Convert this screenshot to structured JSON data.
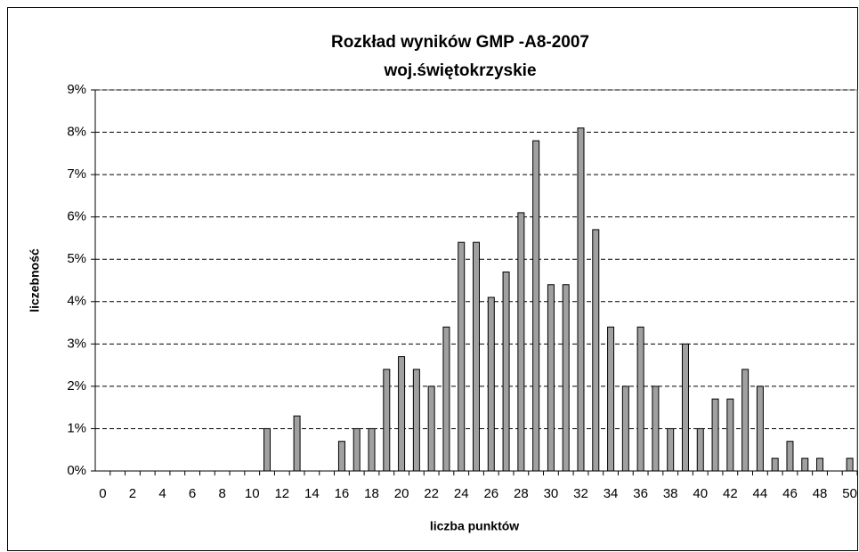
{
  "chart_data": {
    "type": "bar",
    "title": "Rozkład wyników GMP -A8-2007",
    "subtitle": "woj.świętokrzyskie",
    "x_label": "liczba punktów",
    "y_label": "liczebność",
    "categories": [
      0,
      null,
      2,
      null,
      4,
      null,
      6,
      null,
      8,
      null,
      10,
      null,
      12,
      null,
      14,
      null,
      16,
      null,
      18,
      null,
      20,
      null,
      22,
      null,
      24,
      null,
      26,
      null,
      28,
      null,
      30,
      null,
      32,
      null,
      34,
      null,
      36,
      null,
      38,
      null,
      40,
      null,
      42,
      null,
      44,
      null,
      46,
      null,
      48,
      null,
      50
    ],
    "values": [
      0,
      0,
      0,
      0,
      0,
      0,
      0,
      0,
      0,
      0,
      0,
      1.0,
      0,
      1.3,
      0,
      0,
      0.7,
      1.0,
      1.0,
      2.4,
      2.7,
      2.4,
      2.0,
      3.4,
      5.4,
      5.4,
      4.1,
      4.7,
      6.1,
      7.8,
      4.4,
      4.4,
      8.1,
      5.7,
      3.4,
      2.0,
      3.4,
      2.0,
      1.0,
      3.0,
      1.0,
      1.7,
      1.7,
      2.4,
      2.0,
      0.3,
      0.7,
      0.3,
      0.3,
      0,
      0.3
    ],
    "color": "#a0a0a0",
    "ylim": [
      0,
      9
    ],
    "yticks": [
      {
        "value": 0,
        "label": "0%"
      },
      {
        "value": 1,
        "label": "1%"
      },
      {
        "value": 2,
        "label": "2%"
      },
      {
        "value": 3,
        "label": "3%"
      },
      {
        "value": 4,
        "label": "4%"
      },
      {
        "value": 5,
        "label": "5%"
      },
      {
        "value": 6,
        "label": "6%"
      },
      {
        "value": 7,
        "label": "7%"
      },
      {
        "value": 8,
        "label": "8%"
      },
      {
        "value": 9,
        "label": "9%"
      }
    ],
    "grid": true
  }
}
